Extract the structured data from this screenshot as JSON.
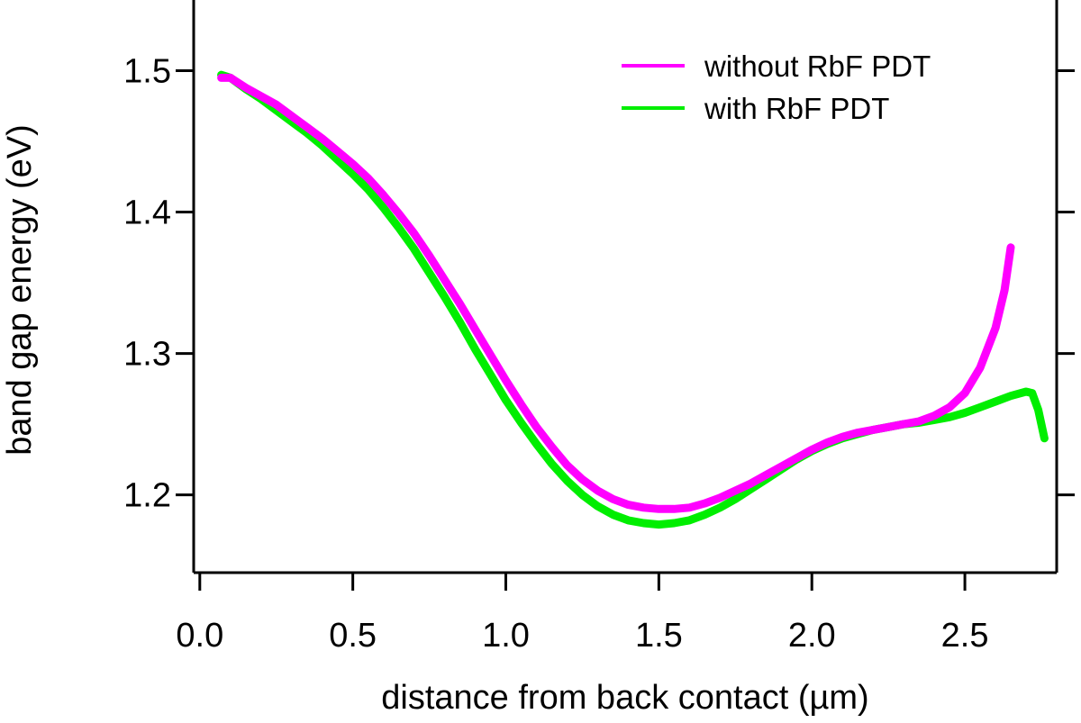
{
  "chart_data": {
    "type": "line",
    "xlabel": "distance from back contact (µm)",
    "ylabel": "band gap energy (eV)",
    "xlim": [
      -0.02,
      2.8
    ],
    "ylim": [
      1.145,
      1.55
    ],
    "x_ticks": [
      0.0,
      0.5,
      1.0,
      1.5,
      2.0,
      2.5
    ],
    "x_tick_labels": [
      "0.0",
      "0.5",
      "1.0",
      "1.5",
      "2.0",
      "2.5"
    ],
    "y_ticks": [
      1.2,
      1.3,
      1.4,
      1.5
    ],
    "y_tick_labels": [
      "1.2",
      "1.3",
      "1.4",
      "1.5"
    ],
    "grid": false,
    "legend_position": "top-right",
    "series": [
      {
        "name": "without RbF PDT",
        "color": "#ff00ff",
        "x": [
          0.07,
          0.1,
          0.15,
          0.2,
          0.25,
          0.3,
          0.35,
          0.4,
          0.45,
          0.5,
          0.55,
          0.6,
          0.65,
          0.7,
          0.75,
          0.8,
          0.85,
          0.9,
          0.95,
          1.0,
          1.05,
          1.1,
          1.15,
          1.2,
          1.25,
          1.3,
          1.35,
          1.4,
          1.45,
          1.5,
          1.55,
          1.6,
          1.65,
          1.7,
          1.75,
          1.8,
          1.85,
          1.9,
          1.95,
          2.0,
          2.05,
          2.1,
          2.15,
          2.2,
          2.25,
          2.3,
          2.35,
          2.4,
          2.45,
          2.5,
          2.55,
          2.6,
          2.63,
          2.65
        ],
        "y": [
          1.495,
          1.495,
          1.488,
          1.482,
          1.476,
          1.468,
          1.46,
          1.452,
          1.443,
          1.434,
          1.424,
          1.412,
          1.399,
          1.385,
          1.369,
          1.352,
          1.335,
          1.317,
          1.299,
          1.281,
          1.264,
          1.248,
          1.234,
          1.221,
          1.211,
          1.203,
          1.197,
          1.193,
          1.191,
          1.19,
          1.19,
          1.191,
          1.194,
          1.198,
          1.203,
          1.208,
          1.214,
          1.22,
          1.226,
          1.232,
          1.237,
          1.241,
          1.244,
          1.246,
          1.248,
          1.25,
          1.252,
          1.256,
          1.262,
          1.272,
          1.29,
          1.318,
          1.345,
          1.375
        ]
      },
      {
        "name": "with RbF PDT",
        "color": "#00ee00",
        "x": [
          0.07,
          0.1,
          0.15,
          0.2,
          0.25,
          0.3,
          0.35,
          0.4,
          0.45,
          0.5,
          0.55,
          0.6,
          0.65,
          0.7,
          0.75,
          0.8,
          0.85,
          0.9,
          0.95,
          1.0,
          1.05,
          1.1,
          1.15,
          1.2,
          1.25,
          1.3,
          1.35,
          1.4,
          1.45,
          1.5,
          1.55,
          1.6,
          1.65,
          1.7,
          1.75,
          1.8,
          1.85,
          1.9,
          1.95,
          2.0,
          2.05,
          2.1,
          2.15,
          2.2,
          2.25,
          2.3,
          2.35,
          2.4,
          2.45,
          2.5,
          2.55,
          2.6,
          2.65,
          2.7,
          2.72,
          2.74,
          2.76
        ],
        "y": [
          1.497,
          1.495,
          1.487,
          1.48,
          1.472,
          1.464,
          1.456,
          1.447,
          1.437,
          1.427,
          1.416,
          1.403,
          1.389,
          1.374,
          1.357,
          1.34,
          1.322,
          1.303,
          1.285,
          1.267,
          1.251,
          1.236,
          1.222,
          1.21,
          1.2,
          1.192,
          1.186,
          1.182,
          1.18,
          1.179,
          1.18,
          1.182,
          1.186,
          1.191,
          1.197,
          1.204,
          1.211,
          1.218,
          1.225,
          1.231,
          1.236,
          1.24,
          1.243,
          1.246,
          1.248,
          1.25,
          1.251,
          1.253,
          1.255,
          1.258,
          1.262,
          1.266,
          1.27,
          1.273,
          1.272,
          1.26,
          1.24
        ]
      }
    ]
  }
}
